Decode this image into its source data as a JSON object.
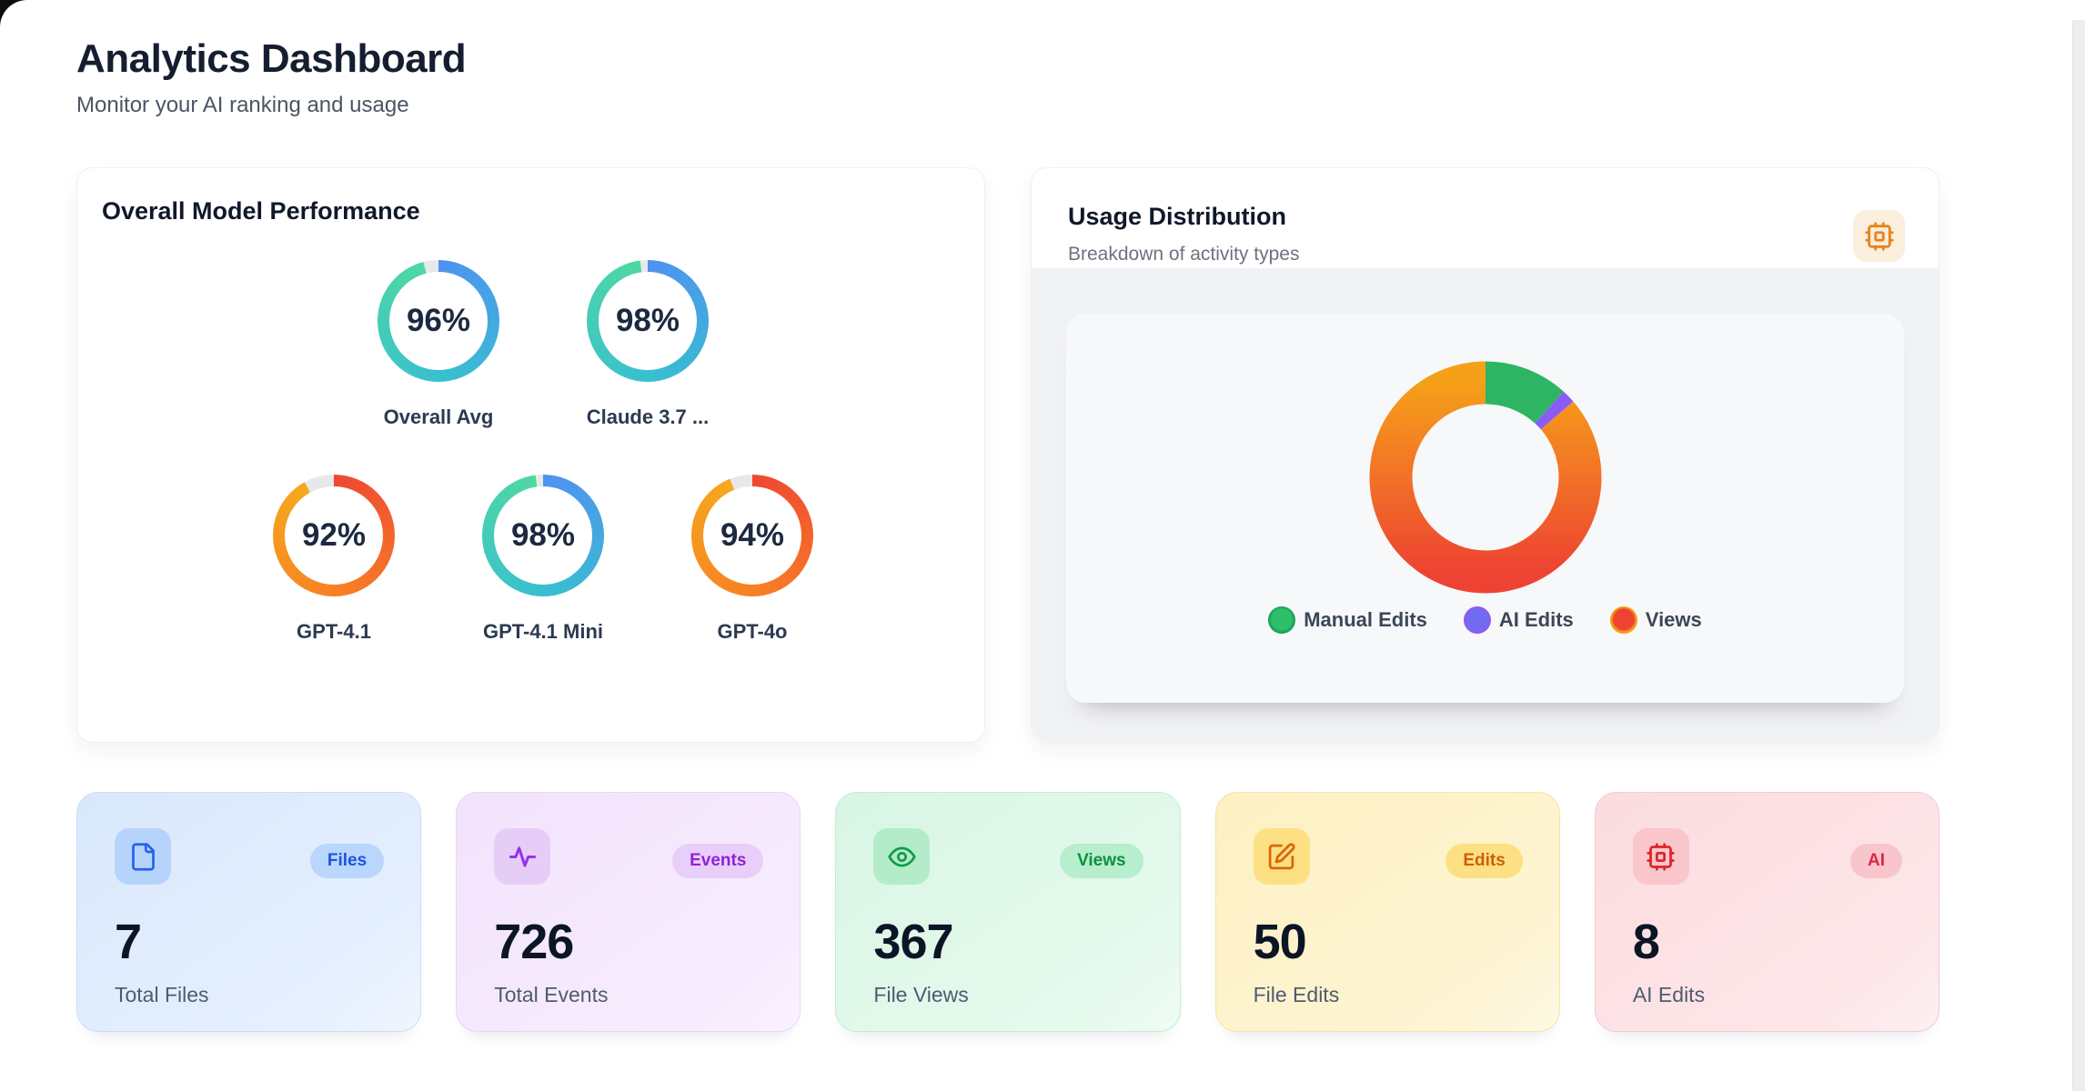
{
  "page": {
    "title": "Analytics Dashboard",
    "subtitle": "Monitor your AI ranking and usage"
  },
  "performance_card": {
    "title": "Overall Model Performance",
    "track_color": "#e6e8ea",
    "palettes": {
      "blue": [
        "#4f92f0",
        "#38bfd0",
        "#4fd8a2"
      ],
      "orange": [
        "#ee4733",
        "#f77d24",
        "#f6a91c"
      ]
    },
    "gauges": [
      {
        "label": "Overall Avg",
        "percent": 96,
        "palette": "blue"
      },
      {
        "label": "Claude 3.7 ...",
        "percent": 98,
        "palette": "blue"
      },
      {
        "label": "GPT-4.1",
        "percent": 92,
        "palette": "orange"
      },
      {
        "label": "GPT-4.1 Mini",
        "percent": 98,
        "palette": "blue"
      },
      {
        "label": "GPT-4o",
        "percent": 94,
        "palette": "orange"
      }
    ]
  },
  "usage_card": {
    "title": "Usage Distribution",
    "subtitle": "Breakdown of activity types",
    "corner_icon": "cpu-icon",
    "segments": [
      {
        "label": "Manual Edits",
        "solid": "#2db563"
      },
      {
        "label": "AI Edits",
        "solid": "#8a5cf5"
      },
      {
        "label": "Views",
        "gradient": [
          "#f5a019",
          "#ee4333"
        ]
      }
    ],
    "legend": [
      {
        "label": "Manual Edits",
        "dot": [
          "#2fbf6a",
          "#1ea355"
        ]
      },
      {
        "label": "AI Edits",
        "dot": [
          "#6f6cf2",
          "#8e59f2"
        ]
      },
      {
        "label": "Views",
        "dot": [
          "#ee4333",
          "#f59d16"
        ]
      }
    ]
  },
  "chart_data": [
    {
      "type": "pie",
      "variant": "radial-gauges",
      "title": "Overall Model Performance",
      "categories": [
        "Overall Avg",
        "Claude 3.7 ...",
        "GPT-4.1",
        "GPT-4.1 Mini",
        "GPT-4o"
      ],
      "values": [
        96,
        98,
        92,
        98,
        94
      ],
      "unit": "%"
    },
    {
      "type": "pie",
      "variant": "donut",
      "title": "Usage Distribution",
      "categories": [
        "Manual Edits",
        "AI Edits",
        "Views"
      ],
      "values": [
        50,
        8,
        367
      ],
      "legend_position": "bottom",
      "start_angle_deg": 0,
      "direction": "clockwise"
    }
  ],
  "stats": [
    {
      "badge": "Files",
      "value": "7",
      "label": "Total Files",
      "icon": "file-icon",
      "theme": {
        "bg1": "#d9e8fc",
        "bg2": "#e9f2fe",
        "border": "#c9ddfa",
        "tile": "#b6d4fb",
        "icon_color": "#2563eb",
        "badge_bg": "#b9d6fc",
        "badge_text": "#1a56db"
      }
    },
    {
      "badge": "Events",
      "value": "726",
      "label": "Total Events",
      "icon": "activity-icon",
      "theme": {
        "bg1": "#f2e3fb",
        "bg2": "#f8eefe",
        "border": "#e9d4f8",
        "tile": "#e6cdf8",
        "icon_color": "#9333ea",
        "badge_bg": "#e8cffa",
        "badge_text": "#9022d6"
      }
    },
    {
      "badge": "Views",
      "value": "367",
      "label": "File Views",
      "icon": "eye-icon",
      "theme": {
        "bg1": "#d8f5e4",
        "bg2": "#e9fbf0",
        "border": "#c3ecd4",
        "tile": "#b4ecc9",
        "icon_color": "#0f9d47",
        "badge_bg": "#b7eecd",
        "badge_text": "#0e8f41"
      }
    },
    {
      "badge": "Edits",
      "value": "50",
      "label": "File Edits",
      "icon": "edit-icon",
      "theme": {
        "bg1": "#fdf0c2",
        "bg2": "#fdf6d8",
        "border": "#f6e5a4",
        "tile": "#fce083",
        "icon_color": "#d96708",
        "badge_bg": "#fce083",
        "badge_text": "#cc5f04"
      }
    },
    {
      "badge": "AI",
      "value": "8",
      "label": "AI Edits",
      "icon": "cpu-icon",
      "theme": {
        "bg1": "#fbdce0",
        "bg2": "#fde9eb",
        "border": "#f6c9d0",
        "tile": "#f9c6cc",
        "icon_color": "#dc2626",
        "badge_bg": "#f9c5cd",
        "badge_text": "#dc2643"
      }
    }
  ]
}
